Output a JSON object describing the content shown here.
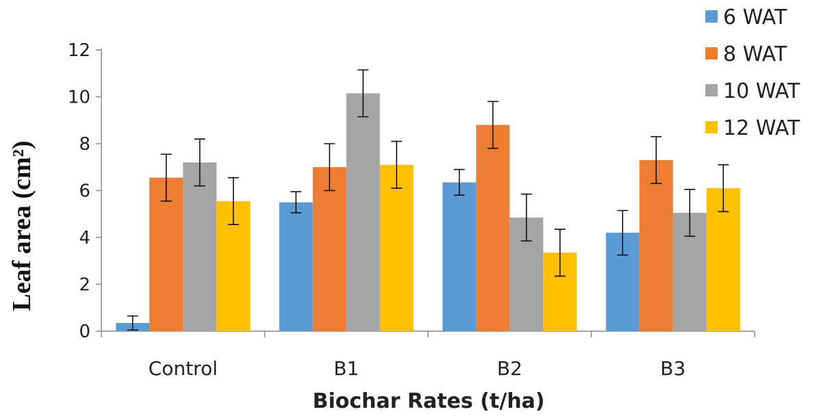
{
  "chart_data": {
    "type": "bar",
    "categories": [
      "Control",
      "B1",
      "B2",
      "B3"
    ],
    "series": [
      {
        "name": "6 WAT",
        "color": "#5B9BD5",
        "values": [
          0.35,
          5.5,
          6.35,
          4.2
        ],
        "errors": [
          0.3,
          0.45,
          0.55,
          0.95
        ]
      },
      {
        "name": "8 WAT",
        "color": "#ED7D31",
        "values": [
          6.55,
          7.0,
          8.8,
          7.3
        ],
        "errors": [
          1.0,
          1.0,
          1.0,
          1.0
        ]
      },
      {
        "name": "10 WAT",
        "color": "#A5A5A5",
        "values": [
          7.2,
          10.15,
          4.85,
          5.05
        ],
        "errors": [
          1.0,
          1.0,
          1.0,
          1.0
        ]
      },
      {
        "name": "12 WAT",
        "color": "#FFC000",
        "values": [
          5.55,
          7.1,
          3.35,
          6.1
        ],
        "errors": [
          1.0,
          1.0,
          1.0,
          1.0
        ]
      }
    ],
    "y_ticks": [
      "0",
      "2",
      "4",
      "6",
      "8",
      "10",
      "12"
    ],
    "ylim": [
      0,
      12
    ],
    "xlabel": "Biochar Rates (t/ha)",
    "ylabel": "Leaf area (cm²)",
    "legend_position": "top-right",
    "grid": false
  }
}
